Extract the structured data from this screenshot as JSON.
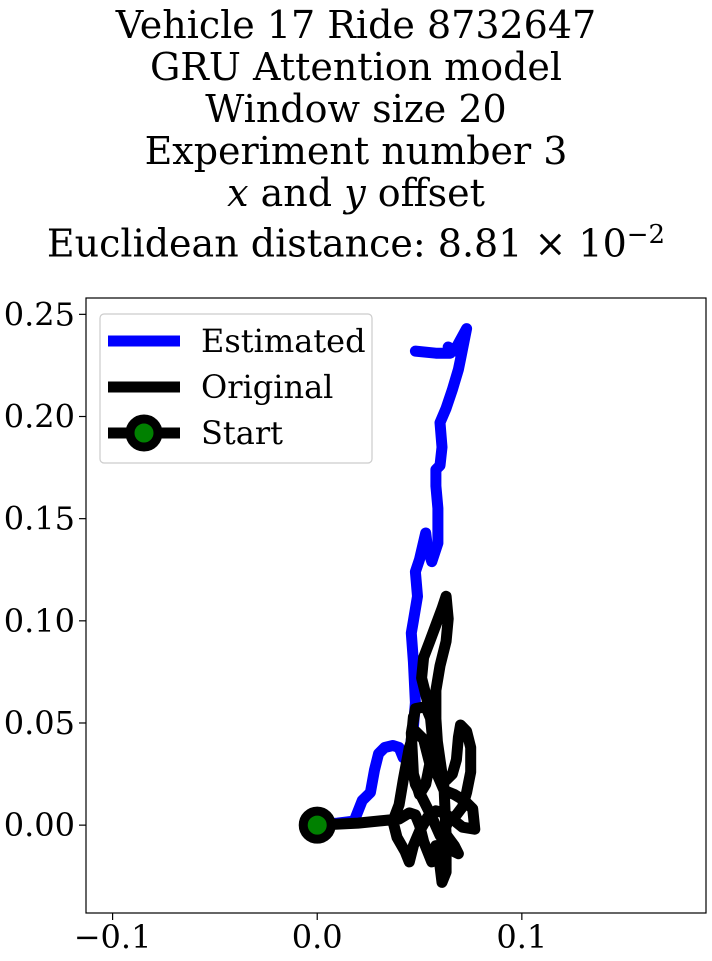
{
  "title": {
    "line1": "Vehicle 17 Ride 8732647",
    "line2": "GRU Attention model",
    "line3": "Window size 20",
    "line4": "Experiment number 3",
    "line5_x": "x",
    "line5_mid": " and ",
    "line5_y": "y",
    "line5_end": " offset",
    "line6_prefix": "Euclidean distance: 8.81",
    "line6_times": " × 10",
    "line6_exp": "−2"
  },
  "chart_data": {
    "type": "line",
    "xlim": [
      -0.113,
      0.19
    ],
    "ylim": [
      -0.043,
      0.258
    ],
    "xticks": [
      {
        "value": -0.1,
        "label": "−0.1"
      },
      {
        "value": 0.0,
        "label": "0.0"
      },
      {
        "value": 0.1,
        "label": "0.1"
      }
    ],
    "yticks": [
      {
        "value": 0.0,
        "label": "0.00"
      },
      {
        "value": 0.05,
        "label": "0.05"
      },
      {
        "value": 0.1,
        "label": "0.10"
      },
      {
        "value": 0.15,
        "label": "0.15"
      },
      {
        "value": 0.2,
        "label": "0.20"
      },
      {
        "value": 0.25,
        "label": "0.25"
      }
    ],
    "grid": false,
    "legend_position": "upper left",
    "series": [
      {
        "name": "Estimated",
        "color": "#0000ff",
        "points": [
          [
            0.0,
            0.0
          ],
          [
            0.01,
            0.001
          ],
          [
            0.018,
            0.002
          ],
          [
            0.022,
            0.012
          ],
          [
            0.026,
            0.016
          ],
          [
            0.028,
            0.027
          ],
          [
            0.03,
            0.035
          ],
          [
            0.033,
            0.038
          ],
          [
            0.037,
            0.039
          ],
          [
            0.04,
            0.038
          ],
          [
            0.042,
            0.033
          ],
          [
            0.045,
            0.036
          ],
          [
            0.047,
            0.048
          ],
          [
            0.048,
            0.06
          ],
          [
            0.047,
            0.08
          ],
          [
            0.046,
            0.094
          ],
          [
            0.047,
            0.1
          ],
          [
            0.049,
            0.112
          ],
          [
            0.048,
            0.124
          ],
          [
            0.05,
            0.13
          ],
          [
            0.053,
            0.143
          ],
          [
            0.054,
            0.135
          ],
          [
            0.056,
            0.129
          ],
          [
            0.059,
            0.138
          ],
          [
            0.059,
            0.155
          ],
          [
            0.058,
            0.166
          ],
          [
            0.058,
            0.174
          ],
          [
            0.06,
            0.176
          ],
          [
            0.061,
            0.185
          ],
          [
            0.06,
            0.197
          ],
          [
            0.063,
            0.204
          ],
          [
            0.066,
            0.213
          ],
          [
            0.069,
            0.223
          ],
          [
            0.07,
            0.228
          ],
          [
            0.073,
            0.243
          ],
          [
            0.067,
            0.232
          ],
          [
            0.064,
            0.234
          ],
          [
            0.065,
            0.231
          ],
          [
            0.058,
            0.231
          ],
          [
            0.048,
            0.232
          ]
        ]
      },
      {
        "name": "Original",
        "color": "#000000",
        "points": [
          [
            0.0,
            0.0
          ],
          [
            0.02,
            0.001
          ],
          [
            0.04,
            0.003
          ],
          [
            0.045,
            0.006
          ],
          [
            0.048,
            0.005
          ],
          [
            0.05,
            0.0
          ],
          [
            0.052,
            -0.008
          ],
          [
            0.056,
            -0.018
          ],
          [
            0.058,
            -0.01
          ],
          [
            0.06,
            -0.02
          ],
          [
            0.061,
            -0.028
          ],
          [
            0.063,
            -0.023
          ],
          [
            0.063,
            -0.005
          ],
          [
            0.062,
            0.018
          ],
          [
            0.058,
            0.046
          ],
          [
            0.053,
            0.058
          ],
          [
            0.048,
            0.057
          ],
          [
            0.046,
            0.045
          ],
          [
            0.047,
            0.025
          ],
          [
            0.05,
            0.015
          ],
          [
            0.053,
            0.02
          ],
          [
            0.055,
            0.03
          ],
          [
            0.052,
            0.042
          ],
          [
            0.048,
            0.046
          ],
          [
            0.045,
            0.038
          ],
          [
            0.042,
            0.022
          ],
          [
            0.04,
            0.01
          ],
          [
            0.037,
            0.002
          ],
          [
            0.039,
            -0.006
          ],
          [
            0.043,
            -0.013
          ],
          [
            0.045,
            -0.018
          ],
          [
            0.047,
            -0.01
          ],
          [
            0.05,
            -0.003
          ],
          [
            0.054,
            0.004
          ],
          [
            0.058,
            0.007
          ],
          [
            0.062,
            0.006
          ],
          [
            0.066,
            0.003
          ],
          [
            0.071,
            -0.001
          ],
          [
            0.077,
            -0.002
          ],
          [
            0.076,
            0.008
          ],
          [
            0.072,
            0.012
          ],
          [
            0.067,
            0.015
          ],
          [
            0.062,
            0.017
          ],
          [
            0.059,
            0.024
          ],
          [
            0.057,
            0.034
          ],
          [
            0.056,
            0.046
          ],
          [
            0.055,
            0.056
          ],
          [
            0.053,
            0.064
          ],
          [
            0.051,
            0.072
          ],
          [
            0.052,
            0.082
          ],
          [
            0.055,
            0.09
          ],
          [
            0.058,
            0.098
          ],
          [
            0.061,
            0.106
          ],
          [
            0.063,
            0.112
          ],
          [
            0.064,
            0.101
          ],
          [
            0.063,
            0.09
          ],
          [
            0.06,
            0.078
          ],
          [
            0.058,
            0.066
          ],
          [
            0.058,
            0.052
          ],
          [
            0.059,
            0.037
          ],
          [
            0.06,
            0.027
          ],
          [
            0.063,
            0.022
          ],
          [
            0.066,
            0.025
          ],
          [
            0.068,
            0.032
          ],
          [
            0.069,
            0.043
          ],
          [
            0.07,
            0.049
          ],
          [
            0.073,
            0.046
          ],
          [
            0.075,
            0.038
          ],
          [
            0.075,
            0.026
          ],
          [
            0.073,
            0.016
          ],
          [
            0.071,
            0.009
          ],
          [
            0.068,
            0.005
          ],
          [
            0.064,
            0.002
          ],
          [
            0.062,
            -0.003
          ],
          [
            0.064,
            -0.006
          ],
          [
            0.067,
            -0.01
          ],
          [
            0.069,
            -0.014
          ],
          [
            0.065,
            -0.012
          ],
          [
            0.06,
            -0.005
          ],
          [
            0.056,
            0.004
          ],
          [
            0.052,
            0.012
          ],
          [
            0.048,
            0.02
          ],
          [
            0.046,
            0.03
          ],
          [
            0.046,
            0.042
          ],
          [
            0.047,
            0.053
          ]
        ]
      },
      {
        "name": "Start",
        "color": "#000000",
        "marker_fill": "#008000",
        "points": [
          [
            0.0,
            0.0
          ]
        ]
      }
    ]
  }
}
